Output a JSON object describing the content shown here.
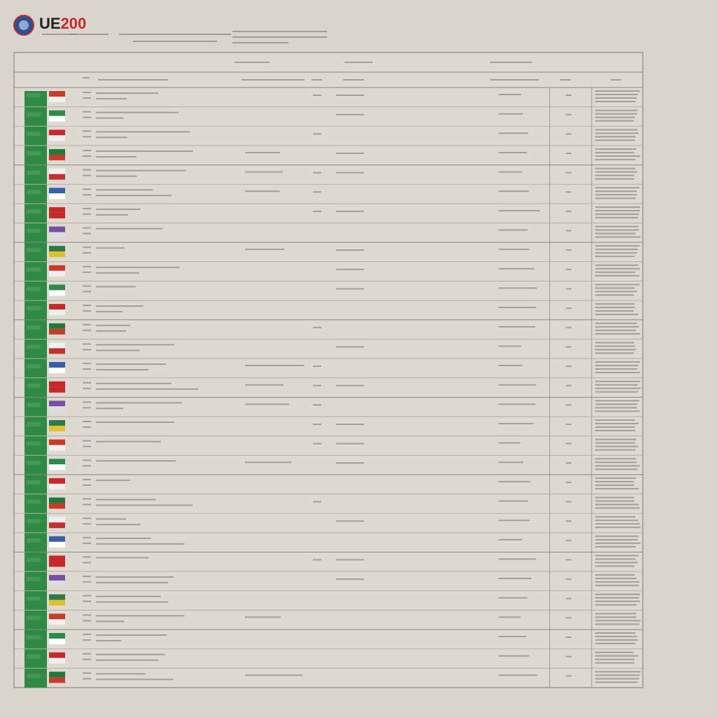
{
  "header": {
    "logo_text": "UE",
    "logo_year": "200"
  }
}
